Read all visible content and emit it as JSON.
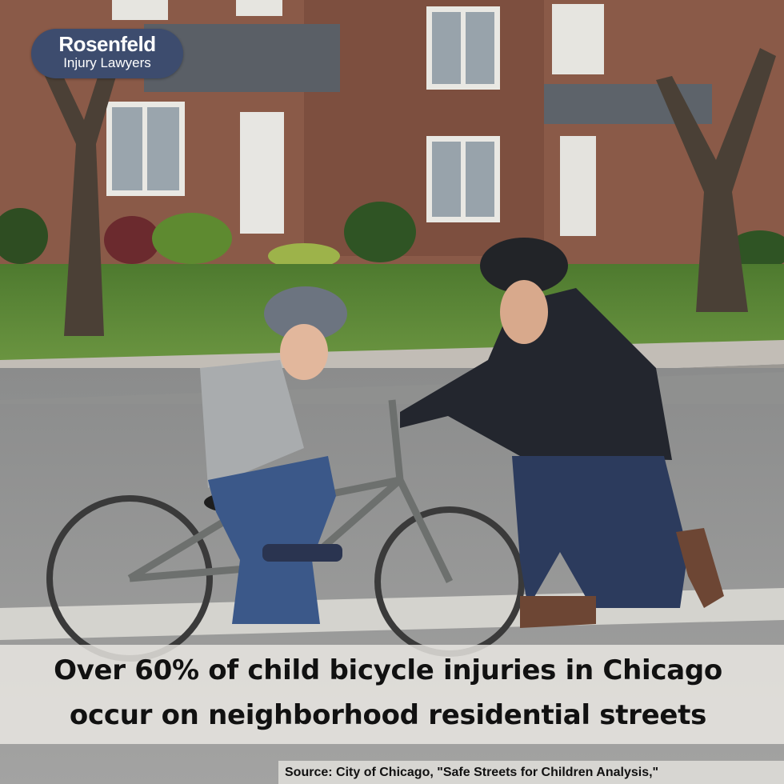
{
  "logo": {
    "name": "Rosenfeld",
    "tagline": "Injury Lawyers",
    "color": "#3d4c6e"
  },
  "caption": {
    "line1": "Over 60% of child bicycle injuries in Chicago",
    "line2": "occur on neighborhood residential streets"
  },
  "source": "Source: City of Chicago, \"Safe Streets for Children Analysis,\"",
  "scene": "photo-background"
}
